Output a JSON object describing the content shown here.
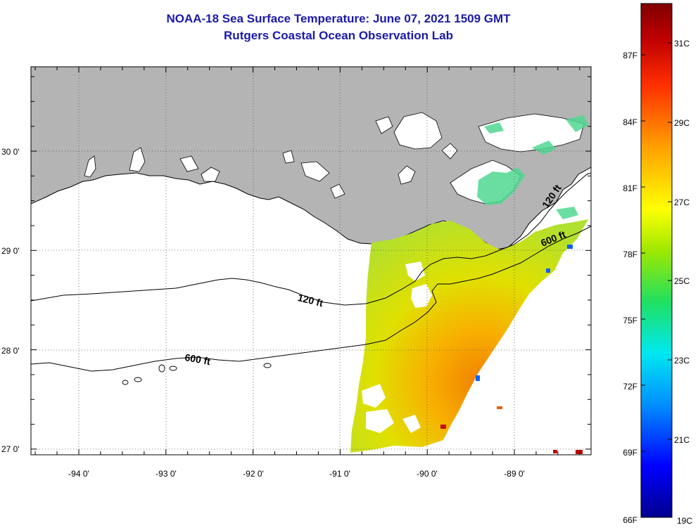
{
  "header": {
    "title": "NOAA-18 Sea Surface Temperature:  June 07, 2021 1509 GMT",
    "subtitle": "Rutgers Coastal Ocean Observation Lab"
  },
  "map": {
    "lat_labels": [
      "30 0'",
      "29 0'",
      "28 0'",
      "27 0'"
    ],
    "lon_labels": [
      "-94 0'",
      "-93 0'",
      "-92 0'",
      "-91 0'",
      "-90 0'",
      "-89 0'"
    ],
    "contours": {
      "shallow_label": "120 ft",
      "deep_label": "600 ft"
    },
    "colors": {
      "land": "#b4b4b4",
      "coastline": "#000000",
      "frame": "#000000"
    }
  },
  "colorbar": {
    "fahrenheit_labels": [
      "87F",
      "84F",
      "81F",
      "78F",
      "75F",
      "72F",
      "69F",
      "66F"
    ],
    "celsius_labels": [
      "31C",
      "29C",
      "27C",
      "25C",
      "23C",
      "21C",
      "19C"
    ],
    "range_c": [
      19,
      32
    ],
    "stops": [
      "#00008f",
      "#0000ff",
      "#0090ff",
      "#00e8f0",
      "#20e060",
      "#a0e800",
      "#ffff00",
      "#ffa000",
      "#ff3000",
      "#c00000",
      "#800000"
    ]
  }
}
